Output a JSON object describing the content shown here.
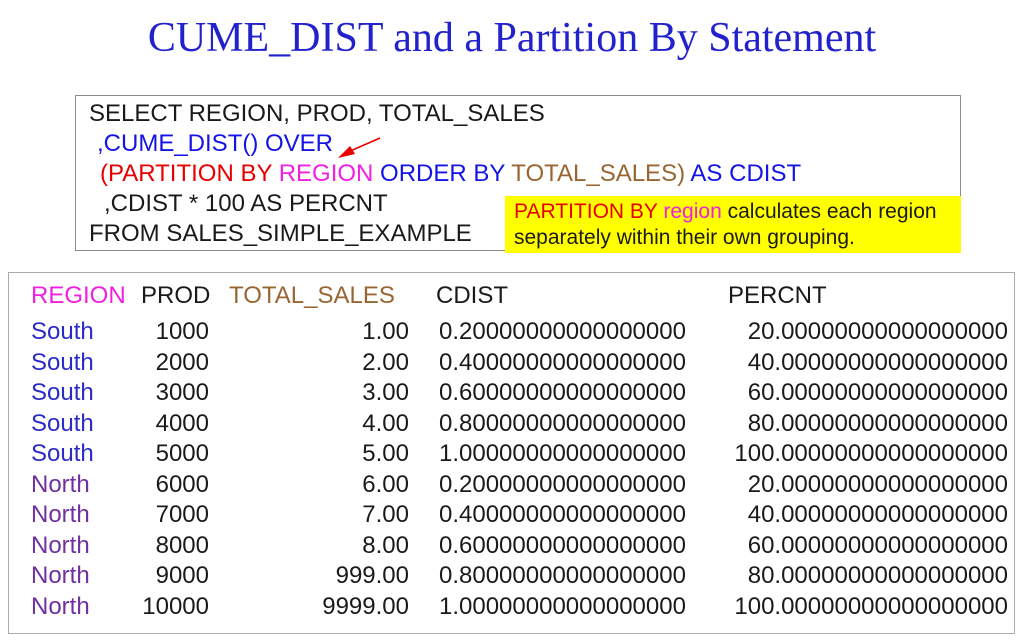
{
  "title": "CUME_DIST and a Partition By Statement",
  "code_box": {
    "line1": "SELECT REGION, PROD, TOTAL_SALES",
    "line2": ",CUME_DIST() OVER",
    "line3": [
      {
        "text": "(PARTITION BY "
      },
      {
        "text": "REGION"
      },
      {
        "text": " ORDER BY "
      },
      {
        "text": "TOTAL_SALES)"
      },
      {
        "text": " AS CDIST"
      }
    ],
    "line4": ",CDIST * 100 AS PERCNT",
    "line5": "FROM SALES_SIMPLE_EXAMPLE"
  },
  "callout": {
    "parts": [
      "PARTITION BY ",
      "region",
      " calculates each region separately within their own grouping."
    ]
  },
  "table": {
    "headers": [
      "REGION",
      "PROD",
      "TOTAL_SALES",
      "CDIST",
      "PERCNT"
    ],
    "rows": [
      {
        "region": "South",
        "prod": "1000",
        "total_sales": "1.00",
        "cdist": "0.20000000000000000",
        "percnt": "20.00000000000000000"
      },
      {
        "region": "South",
        "prod": "2000",
        "total_sales": "2.00",
        "cdist": "0.40000000000000000",
        "percnt": "40.00000000000000000"
      },
      {
        "region": "South",
        "prod": "3000",
        "total_sales": "3.00",
        "cdist": "0.60000000000000000",
        "percnt": "60.00000000000000000"
      },
      {
        "region": "South",
        "prod": "4000",
        "total_sales": "4.00",
        "cdist": "0.80000000000000000",
        "percnt": "80.00000000000000000"
      },
      {
        "region": "South",
        "prod": "5000",
        "total_sales": "5.00",
        "cdist": "1.00000000000000000",
        "percnt": "100.00000000000000000"
      },
      {
        "region": "North",
        "prod": "6000",
        "total_sales": "6.00",
        "cdist": "0.20000000000000000",
        "percnt": "20.00000000000000000"
      },
      {
        "region": "North",
        "prod": "7000",
        "total_sales": "7.00",
        "cdist": "0.40000000000000000",
        "percnt": "40.00000000000000000"
      },
      {
        "region": "North",
        "prod": "8000",
        "total_sales": "8.00",
        "cdist": "0.60000000000000000",
        "percnt": "60.00000000000000000"
      },
      {
        "region": "North",
        "prod": "9000",
        "total_sales": "999.00",
        "cdist": "0.80000000000000000",
        "percnt": "80.00000000000000000"
      },
      {
        "region": "North",
        "prod": "10000",
        "total_sales": "9999.00",
        "cdist": "1.00000000000000000",
        "percnt": "100.00000000000000000"
      }
    ]
  },
  "colors": {
    "title_blue": "#2222CC",
    "code_blue": "#1414E6",
    "keyword_red": "#E80000",
    "magenta": "#F020E0",
    "brown": "#996633",
    "south": "#2B2BC8",
    "north": "#7030A0",
    "callout_yellow": "#FFFF00",
    "text_black": "#1A1A1A"
  },
  "icons": {
    "annotation_arrow": "red-arrow-icon"
  }
}
